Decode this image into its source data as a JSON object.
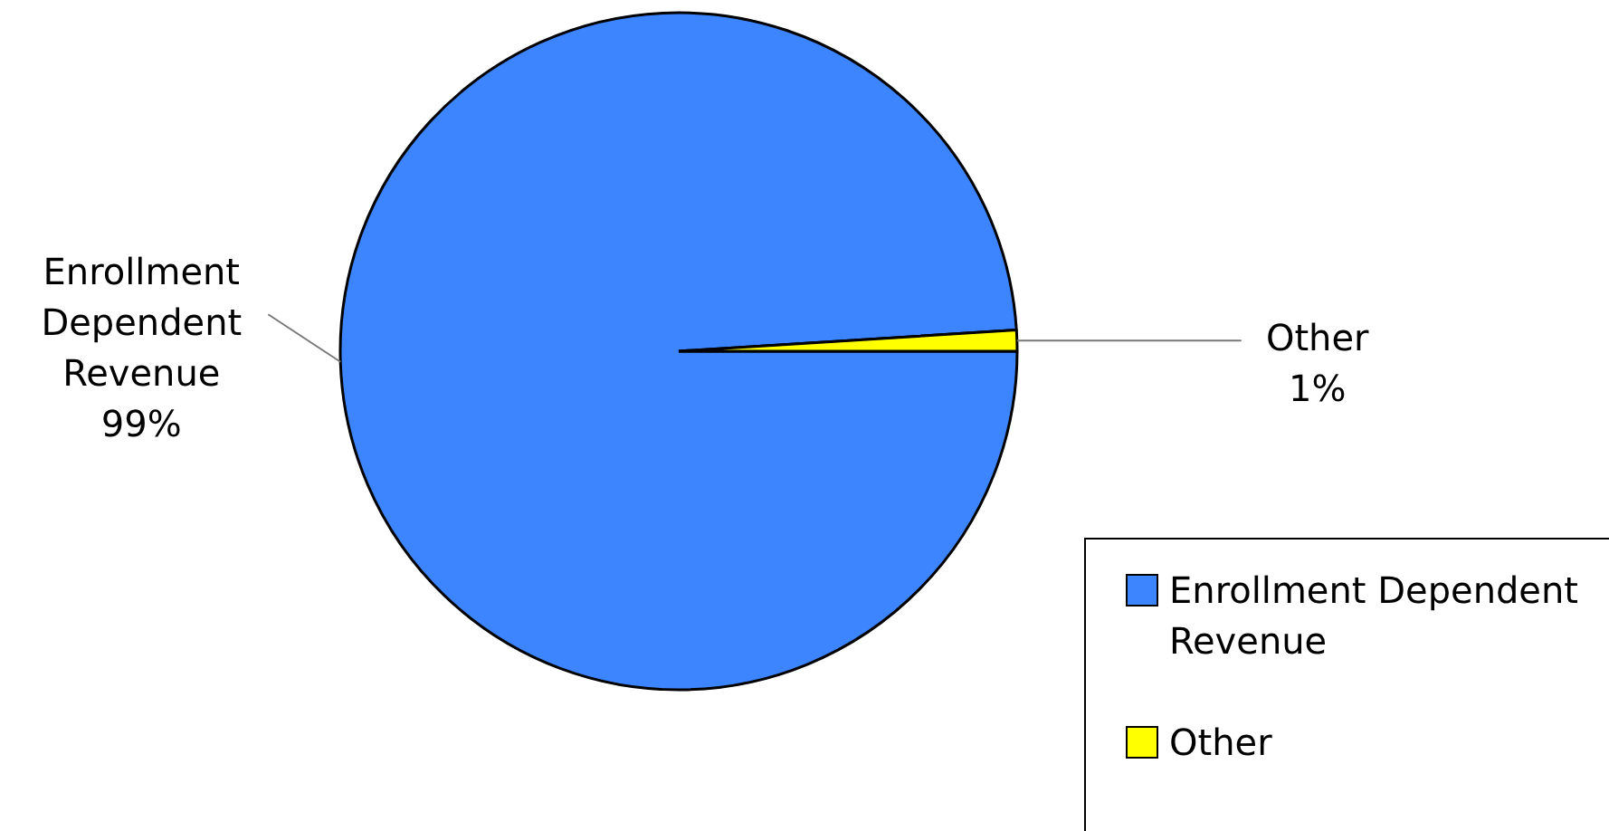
{
  "chart_data": {
    "type": "pie",
    "categories": [
      "Enrollment Dependent Revenue",
      "Other"
    ],
    "values": [
      99,
      1
    ],
    "colors": [
      "#3d85ff",
      "#ffff00"
    ],
    "value_labels": [
      "99%",
      "1%"
    ],
    "legend": "bottom right"
  }
}
